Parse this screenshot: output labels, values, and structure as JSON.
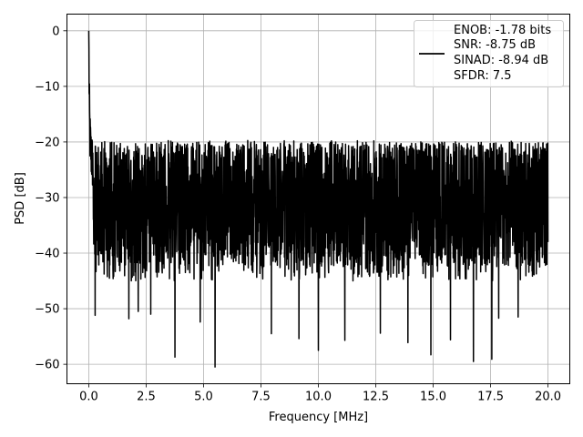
{
  "chart_data": {
    "type": "line",
    "title": "",
    "xlabel": "Frequency [MHz]",
    "ylabel": "PSD [dB]",
    "xlim": [
      -0.95,
      20.95
    ],
    "ylim": [
      -63.5,
      3.0
    ],
    "xticks": [
      0.0,
      2.5,
      5.0,
      7.5,
      10.0,
      12.5,
      15.0,
      17.5,
      20.0
    ],
    "xtick_labels": [
      "0.0",
      "2.5",
      "5.0",
      "7.5",
      "10.0",
      "12.5",
      "15.0",
      "17.5",
      "20.0"
    ],
    "yticks": [
      0,
      -10,
      -20,
      -30,
      -40,
      -50,
      -60
    ],
    "ytick_labels": [
      "0",
      "−10",
      "−20",
      "−30",
      "−40",
      "−50",
      "−60"
    ],
    "grid": true,
    "line_color": "#000000",
    "series": [
      {
        "x_range": [
          0.0,
          20.0
        ],
        "peak": {
          "x": 0.0,
          "y": 0.0
        },
        "low_freq_decay": [
          [
            0.0,
            0.0
          ],
          [
            0.02,
            -12
          ],
          [
            0.05,
            -19
          ],
          [
            0.1,
            -22
          ],
          [
            0.2,
            -25
          ]
        ],
        "upper_envelope_db": -20,
        "median_db": -31,
        "lower_envelope_db": -45,
        "notable_dips": [
          [
            0.28,
            -51.2
          ],
          [
            1.75,
            -51.8
          ],
          [
            2.15,
            -50.5
          ],
          [
            2.7,
            -51.0
          ],
          [
            3.75,
            -58.7
          ],
          [
            4.85,
            -52.4
          ],
          [
            5.5,
            -60.5
          ],
          [
            7.95,
            -54.5
          ],
          [
            9.15,
            -55.4
          ],
          [
            10.0,
            -57.5
          ],
          [
            11.15,
            -55.7
          ],
          [
            12.7,
            -54.4
          ],
          [
            13.9,
            -56.1
          ],
          [
            14.9,
            -58.3
          ],
          [
            15.75,
            -55.6
          ],
          [
            16.75,
            -59.5
          ],
          [
            17.55,
            -59.1
          ],
          [
            17.85,
            -51.7
          ],
          [
            18.7,
            -51.5
          ]
        ]
      }
    ],
    "legend": {
      "position": "top-right",
      "entries": [
        "ENOB: -1.78 bits",
        "SNR: -8.75 dB",
        "SINAD: -8.94 dB",
        "SFDR: 7.5"
      ]
    }
  }
}
